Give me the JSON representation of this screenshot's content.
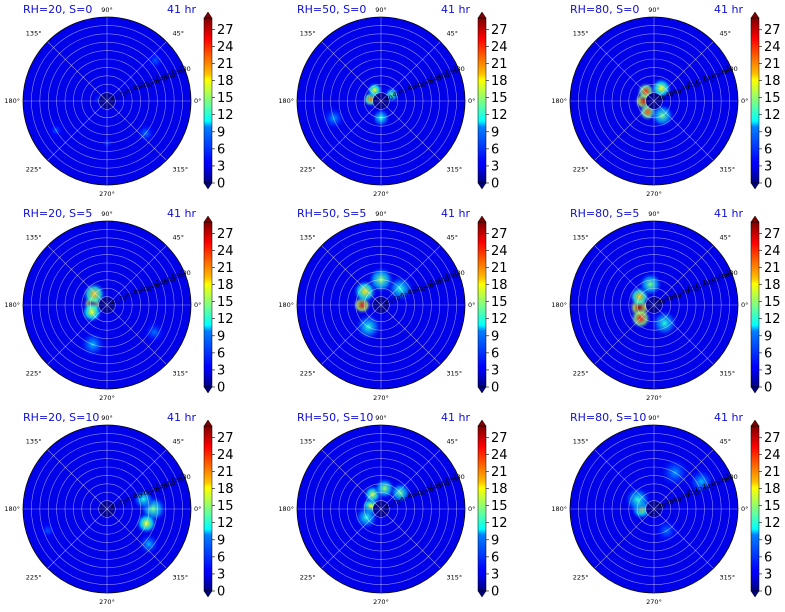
{
  "chart_data": [
    {
      "type": "heatmap",
      "projection": "polar",
      "title": "RH=20, S=0",
      "time_label": "41 hr",
      "angle_ticks": [
        "90°",
        "45°",
        "0°",
        "315°",
        "270°",
        "225°",
        "180°",
        "135°"
      ],
      "radial_ticks": [
        "20",
        "40",
        "60",
        "80",
        "100",
        "120",
        "140",
        "160",
        "180",
        "200"
      ],
      "colorbar": {
        "ticks": [
          "0",
          "3",
          "6",
          "9",
          "12",
          "15",
          "18",
          "21",
          "24",
          "27"
        ],
        "range": [
          0,
          29
        ],
        "colormap": "jet"
      },
      "grid": true,
      "blobs": [
        {
          "angle_deg": 170,
          "r": 20,
          "value": 5,
          "spread": 14
        },
        {
          "angle_deg": 40,
          "r": 150,
          "value": 6,
          "spread": 18
        },
        {
          "angle_deg": 320,
          "r": 120,
          "value": 7,
          "spread": 16
        },
        {
          "angle_deg": 210,
          "r": 140,
          "value": 6,
          "spread": 14
        },
        {
          "angle_deg": 270,
          "r": 100,
          "value": 5,
          "spread": 14
        }
      ]
    },
    {
      "type": "heatmap",
      "projection": "polar",
      "title": "RH=50, S=0",
      "time_label": "41 hr",
      "angle_ticks": [
        "90°",
        "45°",
        "0°",
        "315°",
        "270°",
        "225°",
        "180°",
        "135°"
      ],
      "radial_ticks": [
        "20",
        "40",
        "60",
        "80",
        "100",
        "120",
        "140",
        "160",
        "180",
        "200"
      ],
      "colorbar": {
        "ticks": [
          "0",
          "3",
          "6",
          "9",
          "12",
          "15",
          "18",
          "21",
          "24",
          "27"
        ],
        "range": [
          0,
          29
        ],
        "colormap": "jet"
      },
      "grid": true,
      "blobs": [
        {
          "angle_deg": 170,
          "r": 25,
          "value": 22,
          "spread": 12
        },
        {
          "angle_deg": 120,
          "r": 30,
          "value": 18,
          "spread": 12
        },
        {
          "angle_deg": 30,
          "r": 30,
          "value": 14,
          "spread": 12
        },
        {
          "angle_deg": 270,
          "r": 40,
          "value": 12,
          "spread": 14
        },
        {
          "angle_deg": 200,
          "r": 120,
          "value": 8,
          "spread": 18
        }
      ]
    },
    {
      "type": "heatmap",
      "projection": "polar",
      "title": "RH=80, S=0",
      "time_label": "41 hr",
      "angle_ticks": [
        "90°",
        "45°",
        "0°",
        "315°",
        "270°",
        "225°",
        "180°",
        "135°"
      ],
      "radial_ticks": [
        "20",
        "40",
        "60",
        "80",
        "100",
        "120",
        "140",
        "160",
        "180",
        "200"
      ],
      "colorbar": {
        "ticks": [
          "0",
          "3",
          "6",
          "9",
          "12",
          "15",
          "18",
          "21",
          "24",
          "27"
        ],
        "range": [
          0,
          29
        ],
        "colormap": "jet"
      },
      "grid": true,
      "blobs": [
        {
          "angle_deg": 180,
          "r": 25,
          "value": 27,
          "spread": 14
        },
        {
          "angle_deg": 130,
          "r": 30,
          "value": 24,
          "spread": 14
        },
        {
          "angle_deg": 240,
          "r": 30,
          "value": 23,
          "spread": 14
        },
        {
          "angle_deg": 60,
          "r": 35,
          "value": 18,
          "spread": 16
        },
        {
          "angle_deg": 300,
          "r": 40,
          "value": 14,
          "spread": 18
        }
      ]
    },
    {
      "type": "heatmap",
      "projection": "polar",
      "title": "RH=20, S=5",
      "time_label": "41 hr",
      "angle_ticks": [
        "90°",
        "45°",
        "0°",
        "315°",
        "270°",
        "225°",
        "180°",
        "135°"
      ],
      "radial_ticks": [
        "20",
        "40",
        "60",
        "80",
        "100",
        "120",
        "140",
        "160",
        "180",
        "200"
      ],
      "colorbar": {
        "ticks": [
          "0",
          "3",
          "6",
          "9",
          "12",
          "15",
          "18",
          "21",
          "24",
          "27"
        ],
        "range": [
          0,
          29
        ],
        "colormap": "jet"
      },
      "grid": true,
      "blobs": [
        {
          "angle_deg": 175,
          "r": 35,
          "value": 28,
          "spread": 14
        },
        {
          "angle_deg": 140,
          "r": 40,
          "value": 20,
          "spread": 18
        },
        {
          "angle_deg": 205,
          "r": 40,
          "value": 18,
          "spread": 16
        },
        {
          "angle_deg": 250,
          "r": 100,
          "value": 9,
          "spread": 20
        },
        {
          "angle_deg": 330,
          "r": 130,
          "value": 7,
          "spread": 18
        }
      ]
    },
    {
      "type": "heatmap",
      "projection": "polar",
      "title": "RH=50, S=5",
      "time_label": "41 hr",
      "angle_ticks": [
        "90°",
        "45°",
        "0°",
        "315°",
        "270°",
        "225°",
        "180°",
        "135°"
      ],
      "radial_ticks": [
        "20",
        "40",
        "60",
        "80",
        "100",
        "120",
        "140",
        "160",
        "180",
        "200"
      ],
      "colorbar": {
        "ticks": [
          "0",
          "3",
          "6",
          "9",
          "12",
          "15",
          "18",
          "21",
          "24",
          "27"
        ],
        "range": [
          0,
          29
        ],
        "colormap": "jet"
      },
      "grid": true,
      "blobs": [
        {
          "angle_deg": 180,
          "r": 45,
          "value": 27,
          "spread": 14
        },
        {
          "angle_deg": 140,
          "r": 50,
          "value": 19,
          "spread": 18
        },
        {
          "angle_deg": 90,
          "r": 60,
          "value": 15,
          "spread": 20
        },
        {
          "angle_deg": 40,
          "r": 60,
          "value": 12,
          "spread": 20
        },
        {
          "angle_deg": 240,
          "r": 60,
          "value": 12,
          "spread": 20
        }
      ]
    },
    {
      "type": "heatmap",
      "projection": "polar",
      "title": "RH=80, S=5",
      "time_label": "41 hr",
      "angle_ticks": [
        "90°",
        "45°",
        "0°",
        "315°",
        "270°",
        "225°",
        "180°",
        "135°"
      ],
      "radial_ticks": [
        "20",
        "40",
        "60",
        "80",
        "100",
        "120",
        "140",
        "160",
        "180",
        "200"
      ],
      "colorbar": {
        "ticks": [
          "0",
          "3",
          "6",
          "9",
          "12",
          "15",
          "18",
          "21",
          "24",
          "27"
        ],
        "range": [
          0,
          29
        ],
        "colormap": "jet"
      },
      "grid": true,
      "blobs": [
        {
          "angle_deg": 190,
          "r": 35,
          "value": 28,
          "spread": 16
        },
        {
          "angle_deg": 225,
          "r": 45,
          "value": 25,
          "spread": 16
        },
        {
          "angle_deg": 150,
          "r": 40,
          "value": 20,
          "spread": 16
        },
        {
          "angle_deg": 100,
          "r": 50,
          "value": 14,
          "spread": 18
        },
        {
          "angle_deg": 300,
          "r": 50,
          "value": 12,
          "spread": 20
        }
      ]
    },
    {
      "type": "heatmap",
      "projection": "polar",
      "title": "RH=20, S=10",
      "time_label": "41 hr",
      "angle_ticks": [
        "90°",
        "45°",
        "0°",
        "315°",
        "270°",
        "225°",
        "180°",
        "135°"
      ],
      "radial_ticks": [
        "20",
        "40",
        "60",
        "80",
        "100",
        "120",
        "140",
        "160",
        "180",
        "200"
      ],
      "colorbar": {
        "ticks": [
          "0",
          "3",
          "6",
          "9",
          "12",
          "15",
          "18",
          "21",
          "24",
          "27"
        ],
        "range": [
          0,
          29
        ],
        "colormap": "jet"
      },
      "grid": true,
      "blobs": [
        {
          "angle_deg": 0,
          "r": 110,
          "value": 14,
          "spread": 20
        },
        {
          "angle_deg": 340,
          "r": 100,
          "value": 18,
          "spread": 16
        },
        {
          "angle_deg": 15,
          "r": 90,
          "value": 12,
          "spread": 16
        },
        {
          "angle_deg": 320,
          "r": 130,
          "value": 9,
          "spread": 16
        },
        {
          "angle_deg": 200,
          "r": 150,
          "value": 6,
          "spread": 16
        }
      ]
    },
    {
      "type": "heatmap",
      "projection": "polar",
      "title": "RH=50, S=10",
      "time_label": "41 hr",
      "angle_ticks": [
        "90°",
        "45°",
        "0°",
        "315°",
        "270°",
        "225°",
        "180°",
        "135°"
      ],
      "radial_ticks": [
        "20",
        "40",
        "60",
        "80",
        "100",
        "120",
        "140",
        "160",
        "180",
        "200"
      ],
      "colorbar": {
        "ticks": [
          "0",
          "3",
          "6",
          "9",
          "12",
          "15",
          "18",
          "21",
          "24",
          "27"
        ],
        "range": [
          0,
          29
        ],
        "colormap": "jet"
      },
      "grid": true,
      "blobs": [
        {
          "angle_deg": 165,
          "r": 25,
          "value": 18,
          "spread": 14
        },
        {
          "angle_deg": 120,
          "r": 40,
          "value": 17,
          "spread": 14
        },
        {
          "angle_deg": 80,
          "r": 50,
          "value": 15,
          "spread": 16
        },
        {
          "angle_deg": 40,
          "r": 60,
          "value": 14,
          "spread": 16
        },
        {
          "angle_deg": 210,
          "r": 40,
          "value": 12,
          "spread": 18
        }
      ]
    },
    {
      "type": "heatmap",
      "projection": "polar",
      "title": "RH=80, S=10",
      "time_label": "41 hr",
      "angle_ticks": [
        "90°",
        "45°",
        "0°",
        "315°",
        "270°",
        "225°",
        "180°",
        "135°"
      ],
      "radial_ticks": [
        "20",
        "40",
        "60",
        "80",
        "100",
        "120",
        "140",
        "160",
        "180",
        "200"
      ],
      "colorbar": {
        "ticks": [
          "0",
          "3",
          "6",
          "9",
          "12",
          "15",
          "18",
          "21",
          "24",
          "27"
        ],
        "range": [
          0,
          29
        ],
        "colormap": "jet"
      },
      "grid": true,
      "blobs": [
        {
          "angle_deg": 180,
          "r": 30,
          "value": 17,
          "spread": 16
        },
        {
          "angle_deg": 150,
          "r": 45,
          "value": 12,
          "spread": 20
        },
        {
          "angle_deg": 60,
          "r": 100,
          "value": 8,
          "spread": 24
        },
        {
          "angle_deg": 30,
          "r": 130,
          "value": 9,
          "spread": 20
        },
        {
          "angle_deg": 300,
          "r": 60,
          "value": 7,
          "spread": 20
        }
      ]
    }
  ]
}
